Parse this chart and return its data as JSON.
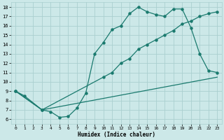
{
  "xlabel": "Humidex (Indice chaleur)",
  "background_color": "#cce8e8",
  "grid_color": "#aacfcf",
  "line_color": "#1a7a6e",
  "xlim": [
    -0.5,
    23.5
  ],
  "ylim": [
    5.5,
    18.5
  ],
  "yticks": [
    6,
    7,
    8,
    9,
    10,
    11,
    12,
    13,
    14,
    15,
    16,
    17,
    18
  ],
  "xticks": [
    0,
    1,
    2,
    3,
    4,
    5,
    6,
    7,
    8,
    9,
    10,
    11,
    12,
    13,
    14,
    15,
    16,
    17,
    18,
    19,
    20,
    21,
    22,
    23
  ],
  "line1_x": [
    0,
    1,
    3,
    4,
    5,
    6,
    7,
    8,
    9,
    10,
    11,
    12,
    13,
    14,
    15,
    16,
    17,
    18,
    19,
    20,
    21,
    22,
    23
  ],
  "line1_y": [
    9.0,
    8.5,
    7.0,
    6.8,
    6.2,
    6.3,
    7.2,
    8.8,
    13.0,
    14.2,
    15.6,
    16.0,
    17.3,
    18.0,
    17.5,
    17.2,
    17.0,
    17.8,
    17.8,
    15.8,
    13.0,
    11.2,
    11.0
  ],
  "line2_x": [
    0,
    3,
    10,
    11,
    12,
    13,
    14,
    15,
    16,
    17,
    18,
    19,
    20,
    21,
    22,
    23
  ],
  "line2_y": [
    9.0,
    7.0,
    10.5,
    11.0,
    12.0,
    12.5,
    13.5,
    14.0,
    14.5,
    15.0,
    15.5,
    16.2,
    16.5,
    17.0,
    17.3,
    17.5
  ],
  "line3_x": [
    0,
    3,
    23
  ],
  "line3_y": [
    9.0,
    7.0,
    10.5
  ]
}
